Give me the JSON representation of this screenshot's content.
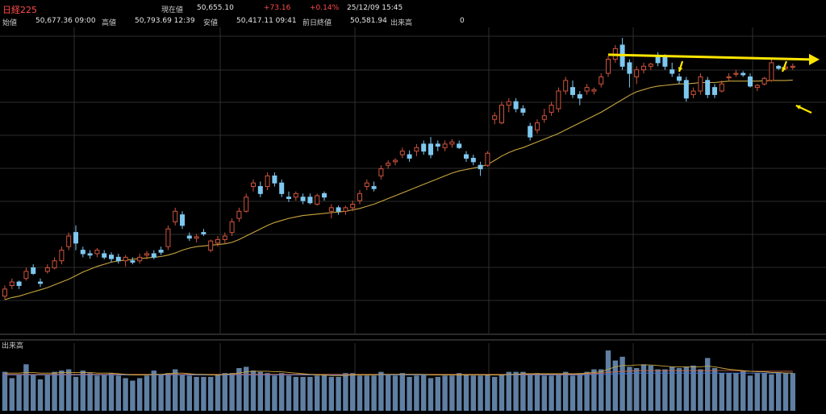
{
  "header": {
    "title": "日経225",
    "current_label": "現在値",
    "current_value": "50,655.10",
    "change": "+73.16",
    "change_pct": "+0.14%",
    "datetime": "25/12/09 15:45",
    "open_label": "始値",
    "open_value": "50,677.36 09:00",
    "high_label": "高値",
    "high_value": "50,793.69 12:39",
    "low_label": "安値",
    "low_value": "50,417.11 09:41",
    "prev_close_label": "前日終値",
    "prev_close_value": "50,581.94",
    "volume_label": "出来高",
    "volume_value": "0"
  },
  "chart_data": {
    "type": "candlestick",
    "volume_panel_label": "出来高",
    "colors": {
      "up": "#d0543c",
      "down": "#7ec8f0",
      "ma": "#c8a640",
      "volume": "#5f7fa3",
      "annotation": "#ffe600",
      "vol_ma1": "#c8a640",
      "vol_ma2": "#d06a4a",
      "vol_ma3": "#4a78d8"
    },
    "price_range": [
      47200,
      51300
    ],
    "candles": [
      [
        47500,
        47650,
        47450,
        47600
      ],
      [
        47650,
        47750,
        47600,
        47700
      ],
      [
        47700,
        47720,
        47600,
        47650
      ],
      [
        47750,
        47900,
        47720,
        47850
      ],
      [
        47900,
        47950,
        47800,
        47820
      ],
      [
        47700,
        47750,
        47630,
        47680
      ],
      [
        47850,
        47950,
        47820,
        47900
      ],
      [
        47900,
        48050,
        47880,
        48000
      ],
      [
        48000,
        48200,
        47950,
        48150
      ],
      [
        48200,
        48400,
        48150,
        48350
      ],
      [
        48400,
        48500,
        48150,
        48250
      ],
      [
        48150,
        48200,
        48050,
        48100
      ],
      [
        48100,
        48150,
        48030,
        48080
      ],
      [
        48100,
        48180,
        48050,
        48150
      ],
      [
        48100,
        48150,
        48020,
        48050
      ],
      [
        48080,
        48120,
        47980,
        48030
      ],
      [
        48050,
        48100,
        47960,
        48000
      ],
      [
        48000,
        48080,
        47920,
        48050
      ],
      [
        48000,
        48050,
        47950,
        47980
      ],
      [
        48000,
        48100,
        47960,
        48050
      ],
      [
        48080,
        48140,
        48020,
        48100
      ],
      [
        48100,
        48150,
        48020,
        48050
      ],
      [
        48150,
        48200,
        48080,
        48120
      ],
      [
        48200,
        48500,
        48150,
        48450
      ],
      [
        48550,
        48750,
        48500,
        48700
      ],
      [
        48650,
        48700,
        48450,
        48500
      ],
      [
        48350,
        48400,
        48280,
        48320
      ],
      [
        48320,
        48380,
        48260,
        48340
      ],
      [
        48400,
        48450,
        48350,
        48380
      ],
      [
        48150,
        48300,
        48120,
        48280
      ],
      [
        48250,
        48350,
        48200,
        48300
      ],
      [
        48300,
        48400,
        48250,
        48350
      ],
      [
        48400,
        48600,
        48350,
        48550
      ],
      [
        48600,
        48750,
        48550,
        48700
      ],
      [
        48700,
        48950,
        48680,
        48900
      ],
      [
        49050,
        49150,
        48980,
        49100
      ],
      [
        49050,
        49120,
        48900,
        48950
      ],
      [
        49050,
        49250,
        49000,
        49200
      ],
      [
        49200,
        49250,
        49050,
        49100
      ],
      [
        49100,
        49150,
        48900,
        48950
      ],
      [
        48900,
        48980,
        48830,
        48880
      ],
      [
        48900,
        48980,
        48850,
        48950
      ],
      [
        48900,
        48950,
        48800,
        48850
      ],
      [
        48900,
        48950,
        48800,
        48820
      ],
      [
        48800,
        48950,
        48780,
        48920
      ],
      [
        48950,
        48980,
        48850,
        48900
      ],
      [
        48700,
        48800,
        48600,
        48750
      ],
      [
        48750,
        48780,
        48650,
        48700
      ],
      [
        48700,
        48780,
        48650,
        48750
      ],
      [
        48750,
        48850,
        48700,
        48800
      ],
      [
        48850,
        49000,
        48800,
        48950
      ],
      [
        49050,
        49150,
        49000,
        49100
      ],
      [
        49050,
        49120,
        48980,
        49020
      ],
      [
        49200,
        49350,
        49150,
        49300
      ],
      [
        49350,
        49420,
        49300,
        49380
      ],
      [
        49400,
        49450,
        49350,
        49420
      ],
      [
        49500,
        49600,
        49450,
        49550
      ],
      [
        49500,
        49560,
        49400,
        49450
      ],
      [
        49550,
        49650,
        49480,
        49600
      ],
      [
        49650,
        49700,
        49500,
        49550
      ],
      [
        49650,
        49750,
        49450,
        49500
      ],
      [
        49650,
        49700,
        49550,
        49620
      ],
      [
        49600,
        49700,
        49550,
        49650
      ],
      [
        49650,
        49720,
        49600,
        49680
      ],
      [
        49650,
        49700,
        49580,
        49600
      ],
      [
        49500,
        49550,
        49400,
        49450
      ],
      [
        49450,
        49500,
        49350,
        49400
      ],
      [
        49350,
        49400,
        49200,
        49300
      ],
      [
        49350,
        49550,
        49330,
        49520
      ],
      [
        50000,
        50100,
        49930,
        50050
      ],
      [
        49950,
        50250,
        49930,
        50200
      ],
      [
        50200,
        50300,
        50100,
        50250
      ],
      [
        50250,
        50300,
        50100,
        50150
      ],
      [
        50150,
        50200,
        50050,
        50100
      ],
      [
        49900,
        49950,
        49700,
        49750
      ],
      [
        49850,
        50000,
        49800,
        49950
      ],
      [
        50000,
        50150,
        49950,
        50050
      ],
      [
        50100,
        50250,
        50050,
        50200
      ],
      [
        50150,
        50450,
        50100,
        50400
      ],
      [
        50400,
        50600,
        50350,
        50550
      ],
      [
        50450,
        50550,
        50300,
        50350
      ],
      [
        50350,
        50400,
        50200,
        50300
      ],
      [
        50400,
        50500,
        50350,
        50450
      ],
      [
        50400,
        50450,
        50350,
        50420
      ],
      [
        50500,
        50650,
        50450,
        50600
      ],
      [
        50650,
        50900,
        50600,
        50850
      ],
      [
        50850,
        51050,
        50800,
        51000
      ],
      [
        51050,
        51150,
        50700,
        50750
      ],
      [
        50800,
        50850,
        50450,
        50650
      ],
      [
        50600,
        50750,
        50500,
        50700
      ],
      [
        50700,
        50800,
        50650,
        50750
      ],
      [
        50750,
        50800,
        50700,
        50780
      ],
      [
        50900,
        50950,
        50750,
        50800
      ],
      [
        50900,
        50920,
        50700,
        50750
      ],
      [
        50700,
        50800,
        50600,
        50650
      ],
      [
        50600,
        50650,
        50500,
        50550
      ],
      [
        50550,
        50600,
        50250,
        50300
      ],
      [
        50350,
        50450,
        50300,
        50400
      ],
      [
        50400,
        50650,
        50350,
        50600
      ],
      [
        50550,
        50600,
        50300,
        50350
      ],
      [
        50450,
        50500,
        50300,
        50350
      ],
      [
        50400,
        50550,
        50380,
        50500
      ],
      [
        50600,
        50650,
        50550,
        50600
      ],
      [
        50650,
        50700,
        50600,
        50650
      ],
      [
        50650,
        50680,
        50600,
        50630
      ],
      [
        50600,
        50650,
        50450,
        50470
      ],
      [
        50450,
        50500,
        50400,
        50480
      ],
      [
        50500,
        50600,
        50480,
        50580
      ],
      [
        50550,
        50850,
        50530,
        50800
      ],
      [
        50750,
        50770,
        50700,
        50720
      ],
      [
        50720,
        50760,
        50690,
        50740
      ],
      [
        50740,
        50790,
        50700,
        50750
      ]
    ],
    "ma": [
      47450,
      47480,
      47500,
      47530,
      47560,
      47590,
      47620,
      47660,
      47700,
      47740,
      47790,
      47840,
      47880,
      47920,
      47950,
      47980,
      48000,
      48010,
      48020,
      48030,
      48040,
      48050,
      48060,
      48080,
      48110,
      48150,
      48180,
      48200,
      48210,
      48220,
      48230,
      48240,
      48260,
      48300,
      48350,
      48400,
      48450,
      48500,
      48540,
      48570,
      48600,
      48620,
      48640,
      48650,
      48660,
      48670,
      48680,
      48690,
      48700,
      48720,
      48740,
      48770,
      48800,
      48840,
      48880,
      48920,
      48960,
      49000,
      49040,
      49080,
      49120,
      49160,
      49200,
      49240,
      49270,
      49290,
      49310,
      49330,
      49360,
      49420,
      49480,
      49530,
      49570,
      49600,
      49640,
      49680,
      49720,
      49760,
      49800,
      49850,
      49900,
      49950,
      50000,
      50050,
      50100,
      50160,
      50220,
      50280,
      50340,
      50390,
      50420,
      50450,
      50470,
      50480,
      50490,
      50500,
      50500,
      50510,
      50520,
      50520,
      50520,
      50530,
      50540,
      50540,
      50540,
      50540,
      50540,
      50545,
      50550,
      50550,
      50550,
      50555
    ],
    "volume": [
      62,
      52,
      58,
      74,
      58,
      50,
      58,
      62,
      64,
      66,
      54,
      64,
      60,
      56,
      58,
      60,
      56,
      52,
      48,
      52,
      56,
      64,
      58,
      60,
      66,
      58,
      56,
      54,
      54,
      54,
      58,
      60,
      60,
      68,
      70,
      64,
      62,
      60,
      56,
      60,
      56,
      54,
      54,
      54,
      56,
      58,
      54,
      54,
      60,
      60,
      56,
      56,
      56,
      62,
      58,
      56,
      60,
      54,
      56,
      58,
      52,
      54,
      56,
      56,
      60,
      58,
      56,
      56,
      58,
      54,
      58,
      62,
      62,
      62,
      58,
      60,
      56,
      56,
      58,
      62,
      56,
      60,
      62,
      66,
      66,
      96,
      80,
      86,
      70,
      68,
      74,
      72,
      66,
      66,
      70,
      68,
      70,
      72,
      66,
      84,
      68,
      60,
      60,
      60,
      64,
      56,
      60,
      60,
      58,
      60,
      60,
      60
    ],
    "vol_ma1": [
      60,
      60,
      60,
      61,
      61,
      60,
      60,
      60,
      61,
      61,
      61,
      61,
      61,
      60,
      60,
      60,
      59,
      58,
      57,
      57,
      57,
      58,
      58,
      59,
      60,
      60,
      59,
      58,
      58,
      57,
      57,
      58,
      59,
      60,
      62,
      63,
      63,
      63,
      62,
      62,
      61,
      60,
      59,
      58,
      57,
      57,
      56,
      56,
      56,
      57,
      57,
      57,
      57,
      58,
      58,
      58,
      58,
      58,
      58,
      58,
      57,
      57,
      57,
      57,
      57,
      57,
      57,
      57,
      57,
      57,
      57,
      58,
      58,
      59,
      59,
      59,
      59,
      59,
      59,
      59,
      59,
      59,
      60,
      61,
      62,
      66,
      70,
      72,
      72,
      73,
      73,
      73,
      72,
      71,
      70,
      70,
      70,
      70,
      70,
      71,
      70,
      68,
      66,
      65,
      64,
      63,
      62,
      62,
      61,
      61,
      60,
      60
    ],
    "vol_ma2": [
      58,
      58,
      58,
      58,
      58,
      58,
      58,
      58,
      58,
      58,
      58,
      58,
      58,
      58,
      58,
      58,
      58,
      58,
      58,
      58,
      58,
      58,
      58,
      58,
      58,
      58,
      58,
      58,
      58,
      58,
      58,
      58,
      58,
      58,
      58,
      58,
      58,
      58,
      58,
      58,
      58,
      58,
      58,
      58,
      58,
      58,
      58,
      58,
      58,
      58,
      58,
      58,
      58,
      58,
      58,
      58,
      58,
      58,
      58,
      58,
      58,
      58,
      58,
      58,
      58,
      58,
      58,
      58,
      58,
      58,
      58,
      58,
      58,
      58,
      58,
      58,
      58,
      58,
      58,
      58,
      58,
      58,
      59,
      59,
      60,
      61,
      62,
      63,
      63,
      64,
      64,
      64,
      64,
      64,
      64,
      64,
      64,
      64,
      64,
      64,
      64,
      64,
      64,
      64,
      63,
      63,
      63,
      63,
      63,
      63,
      63,
      63
    ],
    "vol_ma3": [
      57,
      57,
      57,
      57,
      57,
      57,
      57,
      57,
      57,
      57,
      57,
      57,
      57,
      57,
      57,
      57,
      57,
      57,
      57,
      57,
      57,
      57,
      57,
      57,
      57,
      57,
      57,
      57,
      57,
      57,
      57,
      57,
      57,
      57,
      57,
      57,
      57,
      57,
      57,
      57,
      57,
      57,
      57,
      57,
      57,
      57,
      57,
      57,
      57,
      57,
      57,
      57,
      57,
      57,
      57,
      57,
      57,
      57,
      57,
      57,
      57,
      57,
      57,
      57,
      57,
      57,
      57,
      57,
      57,
      57,
      57,
      57,
      57,
      57,
      57,
      57,
      57,
      57,
      57,
      57,
      57,
      57,
      57,
      58,
      58,
      58,
      59,
      59,
      59,
      60,
      60,
      60,
      60,
      60,
      60,
      60,
      60,
      60,
      60,
      60,
      60,
      60,
      60,
      60,
      60,
      60,
      60,
      60,
      60,
      60,
      60,
      60
    ],
    "volume_max": 100
  }
}
